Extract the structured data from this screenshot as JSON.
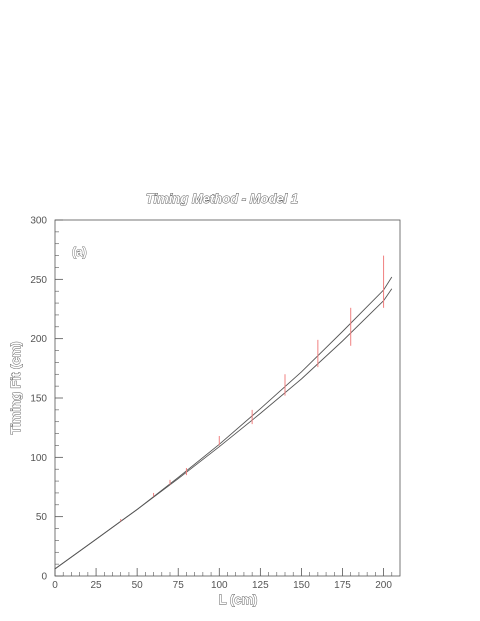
{
  "chart_data": {
    "type": "line",
    "title": "Timing Method - Model 1",
    "xlabel": "L (cm)",
    "ylabel": "Timing Fit (cm)",
    "annotation": "(a)",
    "xlim": [
      0,
      210
    ],
    "ylim": [
      0,
      300
    ],
    "x_ticks": [
      0,
      25,
      50,
      75,
      100,
      125,
      150,
      175,
      200
    ],
    "y_ticks": [
      0,
      50,
      100,
      150,
      200,
      250,
      300
    ],
    "grid": false,
    "colors": {
      "curve": "#555555",
      "error_bar": "#f08080",
      "axis": "#555555"
    },
    "series": [
      {
        "x": [
          0,
          25,
          50,
          75,
          100,
          125,
          150,
          175,
          200,
          205
        ],
        "y": [
          6,
          31,
          56,
          83,
          111,
          141,
          172,
          206,
          241,
          252
        ]
      },
      {
        "x": [
          0,
          25,
          50,
          75,
          100,
          125,
          150,
          175,
          200,
          205
        ],
        "y": [
          6,
          31,
          56,
          82,
          109,
          137,
          166,
          198,
          232,
          242
        ]
      }
    ],
    "error_bars": [
      {
        "x": 40,
        "y": 47,
        "low": 46,
        "high": 48
      },
      {
        "x": 60,
        "y": 68,
        "low": 67,
        "high": 70
      },
      {
        "x": 70,
        "y": 79,
        "low": 77,
        "high": 81
      },
      {
        "x": 80,
        "y": 88,
        "low": 85,
        "high": 91
      },
      {
        "x": 100,
        "y": 114,
        "low": 110,
        "high": 118
      },
      {
        "x": 120,
        "y": 134,
        "low": 128,
        "high": 140
      },
      {
        "x": 140,
        "y": 161,
        "low": 152,
        "high": 170
      },
      {
        "x": 160,
        "y": 187,
        "low": 176,
        "high": 199
      },
      {
        "x": 180,
        "y": 210,
        "low": 194,
        "high": 226
      },
      {
        "x": 200,
        "y": 248,
        "low": 226,
        "high": 270
      }
    ]
  }
}
